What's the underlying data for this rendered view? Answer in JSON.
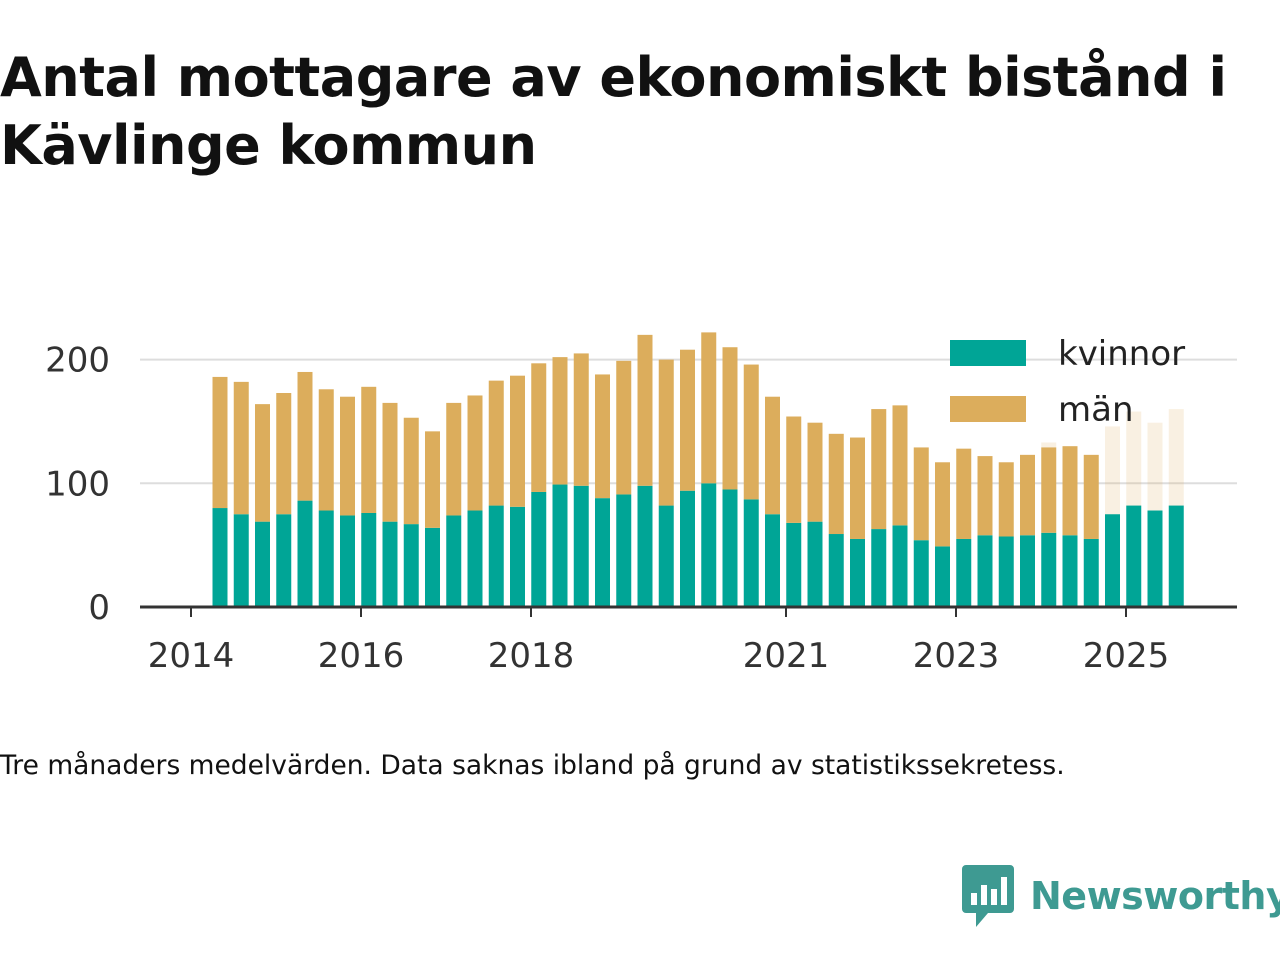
{
  "title": "Antal mottagare av ekonomiskt bistånd i Kävlinge kommun",
  "caption": "Tre månaders medelvärden. Data saknas ibland på grund av statistikssekretess.",
  "brand": {
    "name": "Newsworthy",
    "icon": "newsworthy-chart-bubble-icon",
    "color": "#3e9a92"
  },
  "colors": {
    "kvinnor": "#00a596",
    "man": "#dcad5c",
    "grid": "#dddddd",
    "axis": "#333333"
  },
  "chart_data": {
    "type": "bar",
    "stacked": true,
    "title": "Antal mottagare av ekonomiskt bistånd i Kävlinge kommun",
    "xlabel": "",
    "ylabel": "",
    "ylim": [
      0,
      235
    ],
    "grid": true,
    "legend_position": "top-right",
    "x_ticks": [
      "2014",
      "2016",
      "2018",
      "2021",
      "2023",
      "2025"
    ],
    "y_ticks": [
      0,
      100,
      200
    ],
    "categories": [
      "2014-04",
      "2014-07",
      "2014-10",
      "2015-01",
      "2015-04",
      "2015-07",
      "2015-10",
      "2016-01",
      "2016-04",
      "2016-07",
      "2016-10",
      "2017-01",
      "2017-04",
      "2017-07",
      "2017-10",
      "2018-01",
      "2018-04",
      "2018-07",
      "2018-10",
      "2019-01",
      "2019-04",
      "2019-07",
      "2019-10",
      "2020-01",
      "2020-04",
      "2020-07",
      "2020-10",
      "2021-01",
      "2021-04",
      "2021-07",
      "2021-10",
      "2022-01",
      "2022-04",
      "2022-07",
      "2022-10",
      "2023-01",
      "2023-04",
      "2023-07",
      "2023-10",
      "2024-01",
      "2024-04",
      "2024-07",
      "2024-10",
      "2025-01",
      "2025-04",
      "2025-07"
    ],
    "series": [
      {
        "name": "kvinnor",
        "values": [
          80,
          75,
          69,
          75,
          86,
          78,
          74,
          76,
          69,
          67,
          64,
          74,
          78,
          82,
          81,
          93,
          99,
          98,
          88,
          91,
          98,
          82,
          94,
          100,
          95,
          87,
          75,
          68,
          69,
          59,
          55,
          63,
          66,
          54,
          49,
          55,
          58,
          57,
          58,
          60,
          58,
          55,
          75,
          82,
          78,
          82
        ]
      },
      {
        "name": "män",
        "values": [
          106,
          107,
          95,
          98,
          104,
          98,
          96,
          102,
          96,
          86,
          78,
          91,
          93,
          101,
          106,
          104,
          103,
          107,
          100,
          108,
          122,
          118,
          114,
          122,
          115,
          109,
          95,
          86,
          80,
          81,
          82,
          97,
          97,
          75,
          68,
          73,
          64,
          60,
          65,
          69,
          72,
          68,
          null,
          null,
          null,
          null
        ]
      },
      {
        "name": "",
        "role": "missing-data-marker",
        "values": [
          null,
          null,
          null,
          null,
          null,
          null,
          null,
          null,
          null,
          null,
          null,
          null,
          null,
          null,
          null,
          null,
          null,
          null,
          null,
          null,
          null,
          null,
          null,
          null,
          null,
          null,
          null,
          null,
          null,
          null,
          null,
          null,
          null,
          null,
          null,
          null,
          null,
          null,
          null,
          4,
          null,
          null,
          71,
          76,
          71,
          78
        ]
      }
    ]
  }
}
